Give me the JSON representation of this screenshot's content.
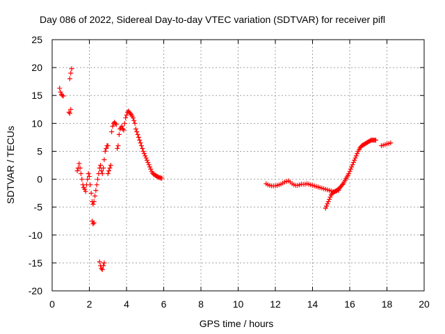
{
  "chart_data": {
    "type": "scatter",
    "title": "Day 086 of 2022, Sidereal Day-to-day VTEC variation (SDTVAR) for receiver pifl",
    "xlabel": "GPS time / hours",
    "ylabel": "SDTVAR / TECUs",
    "xlim": [
      0,
      20
    ],
    "ylim": [
      -20,
      25
    ],
    "x_ticks": [
      0,
      2,
      4,
      6,
      8,
      10,
      12,
      14,
      16,
      18,
      20
    ],
    "y_ticks": [
      -20,
      -15,
      -10,
      -5,
      0,
      5,
      10,
      15,
      20,
      25
    ],
    "x_tick_labels": [
      "0",
      "2",
      "4",
      "6",
      "8",
      "10",
      "12",
      "14",
      "16",
      "18",
      "20"
    ],
    "y_tick_labels": [
      "-20",
      "-15",
      "-10",
      "-5",
      "0",
      "5",
      "10",
      "15",
      "20",
      "25"
    ],
    "grid": true,
    "legend": "none",
    "marker": "plus",
    "color": "#ff0000",
    "series": [
      {
        "name": "SDTVAR",
        "x": [
          0.4,
          0.45,
          0.5,
          0.55,
          0.6,
          0.9,
          0.95,
          1.0,
          0.95,
          1.0,
          1.05,
          1.35,
          1.4,
          1.45,
          1.5,
          1.55,
          1.6,
          1.65,
          1.7,
          1.75,
          1.8,
          1.85,
          1.9,
          1.95,
          2.0,
          2.05,
          2.1,
          2.15,
          2.2,
          2.25,
          2.3,
          2.35,
          2.4,
          2.45,
          2.5,
          2.55,
          2.6,
          2.65,
          2.7,
          2.75,
          2.8,
          2.85,
          2.9,
          2.95,
          3.0,
          2.15,
          2.2,
          2.25,
          2.55,
          2.6,
          2.65,
          2.7,
          2.75,
          2.8,
          3.0,
          3.05,
          3.1,
          3.15,
          3.2,
          3.25,
          3.3,
          3.35,
          3.4,
          3.45,
          3.5,
          3.55,
          3.6,
          3.65,
          3.7,
          3.75,
          3.8,
          3.85,
          3.9,
          3.95,
          4.0,
          4.05,
          4.1,
          4.15,
          4.2,
          4.25,
          4.3,
          4.35,
          4.4,
          4.45,
          4.5,
          4.55,
          4.6,
          4.65,
          4.7,
          4.75,
          4.8,
          4.85,
          4.9,
          4.95,
          5.0,
          5.05,
          5.1,
          5.15,
          5.2,
          5.25,
          5.3,
          5.35,
          5.4,
          5.45,
          5.5,
          5.55,
          5.6,
          5.65,
          5.7,
          5.75,
          5.8,
          5.85,
          5.9,
          11.5,
          11.6,
          11.7,
          11.8,
          11.9,
          12.0,
          12.1,
          12.2,
          12.3,
          12.4,
          12.5,
          12.6,
          12.7,
          12.8,
          12.9,
          13.0,
          13.1,
          13.2,
          13.3,
          13.4,
          13.5,
          13.6,
          13.7,
          13.8,
          13.9,
          14.0,
          14.1,
          14.2,
          14.3,
          14.4,
          14.5,
          14.6,
          14.7,
          14.8,
          14.9,
          15.0,
          15.1,
          15.2,
          15.3,
          15.4,
          14.7,
          14.75,
          14.8,
          14.85,
          14.9,
          14.95,
          15.0,
          15.05,
          15.1,
          15.15,
          15.2,
          15.25,
          15.3,
          15.35,
          15.4,
          15.45,
          15.5,
          15.55,
          15.6,
          15.65,
          15.7,
          15.75,
          15.8,
          15.85,
          15.9,
          15.95,
          16.0,
          16.05,
          16.1,
          16.15,
          16.2,
          16.25,
          16.3,
          16.35,
          16.4,
          16.45,
          16.5,
          16.55,
          16.6,
          16.65,
          16.7,
          16.75,
          16.8,
          16.85,
          16.9,
          16.95,
          17.0,
          17.05,
          17.1,
          17.15,
          17.2,
          17.25,
          17.3,
          17.35,
          17.4,
          17.7,
          17.8,
          17.9,
          18.0,
          18.1,
          18.2
        ],
        "y": [
          16.3,
          15.6,
          15.2,
          15.0,
          14.9,
          12.0,
          11.8,
          12.5,
          18.0,
          19.0,
          19.8,
          1.5,
          2.0,
          2.8,
          2.0,
          1.0,
          0.0,
          -1.0,
          -1.5,
          -1.8,
          -2.2,
          -1.0,
          0.0,
          1.0,
          0.5,
          -1.0,
          -2.5,
          -4.0,
          -4.5,
          -4.0,
          -3.0,
          -2.0,
          -1.0,
          0.0,
          1.0,
          2.0,
          2.5,
          1.5,
          1.0,
          2.0,
          3.5,
          5.0,
          5.5,
          6.0,
          6.0,
          -7.5,
          -8.0,
          -7.8,
          -14.8,
          -15.5,
          -16.0,
          -16.2,
          -15.5,
          -15.0,
          1.0,
          1.5,
          2.0,
          2.5,
          8.5,
          9.5,
          10.0,
          10.2,
          10.0,
          9.8,
          5.5,
          6.0,
          8.0,
          9.0,
          9.2,
          9.5,
          9.0,
          8.8,
          10.0,
          11.0,
          11.5,
          12.0,
          12.2,
          12.0,
          11.8,
          11.6,
          11.3,
          11.0,
          10.5,
          10.0,
          9.0,
          8.5,
          8.0,
          7.5,
          7.0,
          6.5,
          6.0,
          5.5,
          5.0,
          4.6,
          4.2,
          3.8,
          3.4,
          3.0,
          2.6,
          2.2,
          1.8,
          1.4,
          1.1,
          0.9,
          0.8,
          0.7,
          0.6,
          0.5,
          0.4,
          0.3,
          0.3,
          0.2,
          0.2,
          -0.8,
          -1.0,
          -1.1,
          -1.2,
          -1.2,
          -1.2,
          -1.1,
          -1.0,
          -0.9,
          -0.7,
          -0.5,
          -0.4,
          -0.3,
          -0.5,
          -0.8,
          -1.0,
          -1.1,
          -1.1,
          -1.0,
          -0.9,
          -0.9,
          -0.9,
          -0.8,
          -0.9,
          -1.0,
          -1.1,
          -1.2,
          -1.3,
          -1.4,
          -1.5,
          -1.6,
          -1.7,
          -1.8,
          -1.9,
          -2.0,
          -2.1,
          -2.2,
          -2.2,
          -2.1,
          -2.0,
          -5.2,
          -4.8,
          -4.4,
          -4.0,
          -3.6,
          -3.2,
          -2.8,
          -2.6,
          -2.4,
          -2.3,
          -2.2,
          -2.1,
          -2.0,
          -1.9,
          -1.8,
          -1.6,
          -1.4,
          -1.2,
          -1.0,
          -0.8,
          -0.5,
          -0.2,
          0.1,
          0.4,
          0.7,
          1.0,
          1.4,
          1.8,
          2.2,
          2.6,
          3.0,
          3.4,
          3.8,
          4.2,
          4.6,
          5.0,
          5.3,
          5.6,
          5.8,
          6.0,
          6.1,
          6.2,
          6.3,
          6.4,
          6.5,
          6.6,
          6.7,
          6.8,
          6.9,
          7.0,
          7.0,
          7.0,
          7.0,
          7.0,
          7.0,
          6.0,
          6.1,
          6.2,
          6.3,
          6.4,
          6.5
        ]
      }
    ]
  }
}
